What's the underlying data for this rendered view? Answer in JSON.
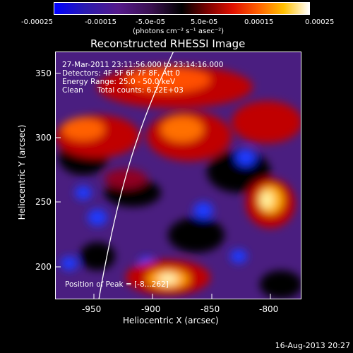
{
  "colorbar": {
    "ticks": [
      "-0.00025",
      "-0.00015",
      "-5.0e-05",
      "5.0e-05",
      "0.00015",
      "0.00025"
    ],
    "units": "(photons cm⁻² s⁻¹ asec⁻²)",
    "colors": [
      "#0000ff",
      "#3a0a9a",
      "#551a8b",
      "#2a0a3a",
      "#000000",
      "#8b0000",
      "#ff2000",
      "#ff8000",
      "#ffd000",
      "#ffffff"
    ]
  },
  "title": "Reconstructed RHESSI Image",
  "annotations": {
    "time": "27-Mar-2011 23:11:56.000 to 23:14:16.000",
    "detectors": "Detectors: 4F 5F 6F 7F 8F, Att 0",
    "energy": "Energy Range: 25.0 - 50.0 keV",
    "clean": "Clean      Total counts: 6.22E+03",
    "peak": "Position of Peak = [-8...262]"
  },
  "axes": {
    "xlabel": "Heliocentric X (arcsec)",
    "ylabel": "Heliocentric Y (arcsec)",
    "xticks": [
      "-950",
      "-900",
      "-850",
      "-800"
    ],
    "yticks": [
      "200",
      "250",
      "300",
      "350"
    ]
  },
  "footer": "16-Aug-2013 20:27"
}
